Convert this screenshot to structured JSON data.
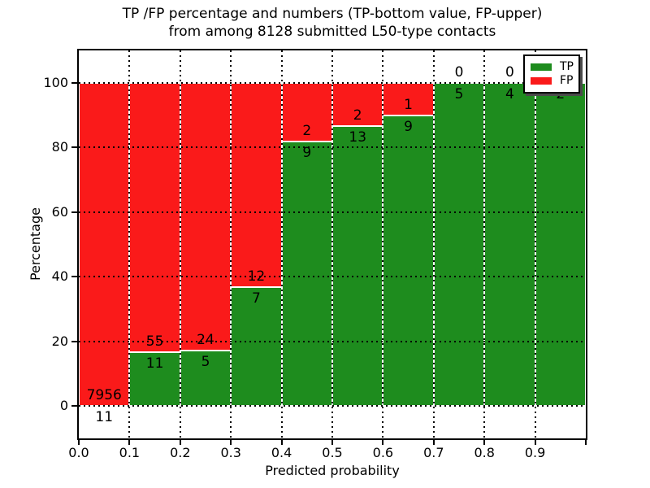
{
  "chart_data": {
    "type": "bar",
    "stacked": true,
    "units": "percent",
    "title_lines": [
      "TP /FP percentage and numbers (TP-bottom value, FP-upper)",
      "from among 8128 submitted L50-type contacts"
    ],
    "xlabel": "Predicted probability",
    "ylabel": "Percentage",
    "xlim": [
      0.0,
      1.0
    ],
    "ylim": [
      -10,
      110
    ],
    "x_tick_labels": [
      "0.0",
      "0.1",
      "0.2",
      "0.3",
      "0.4",
      "0.5",
      "0.6",
      "0.7",
      "0.8",
      "0.9"
    ],
    "y_tick_values": [
      0,
      20,
      40,
      60,
      80,
      100
    ],
    "grid": {
      "style": "dotted",
      "color": "#000000",
      "axes": "both"
    },
    "bin_width": 0.1,
    "categories": [
      "0.0-0.1",
      "0.1-0.2",
      "0.2-0.3",
      "0.3-0.4",
      "0.4-0.5",
      "0.5-0.6",
      "0.6-0.7",
      "0.7-0.8",
      "0.8-0.9",
      "0.9-1.0"
    ],
    "series": [
      {
        "name": "TP",
        "color": "#1e8c1e",
        "counts": [
          11,
          11,
          5,
          7,
          9,
          13,
          9,
          5,
          4,
          2
        ]
      },
      {
        "name": "FP",
        "color": "#fa1a1a",
        "counts": [
          7956,
          55,
          24,
          12,
          2,
          2,
          1,
          0,
          0,
          0
        ]
      }
    ],
    "tp_percent_per_bin": [
      0.14,
      16.67,
      17.24,
      36.84,
      81.82,
      86.67,
      90.0,
      100.0,
      100.0,
      100.0
    ],
    "legend": {
      "position": "upper right",
      "entries": [
        {
          "label": "TP",
          "color": "#1e8c1e"
        },
        {
          "label": "FP",
          "color": "#fa1a1a"
        }
      ]
    }
  }
}
